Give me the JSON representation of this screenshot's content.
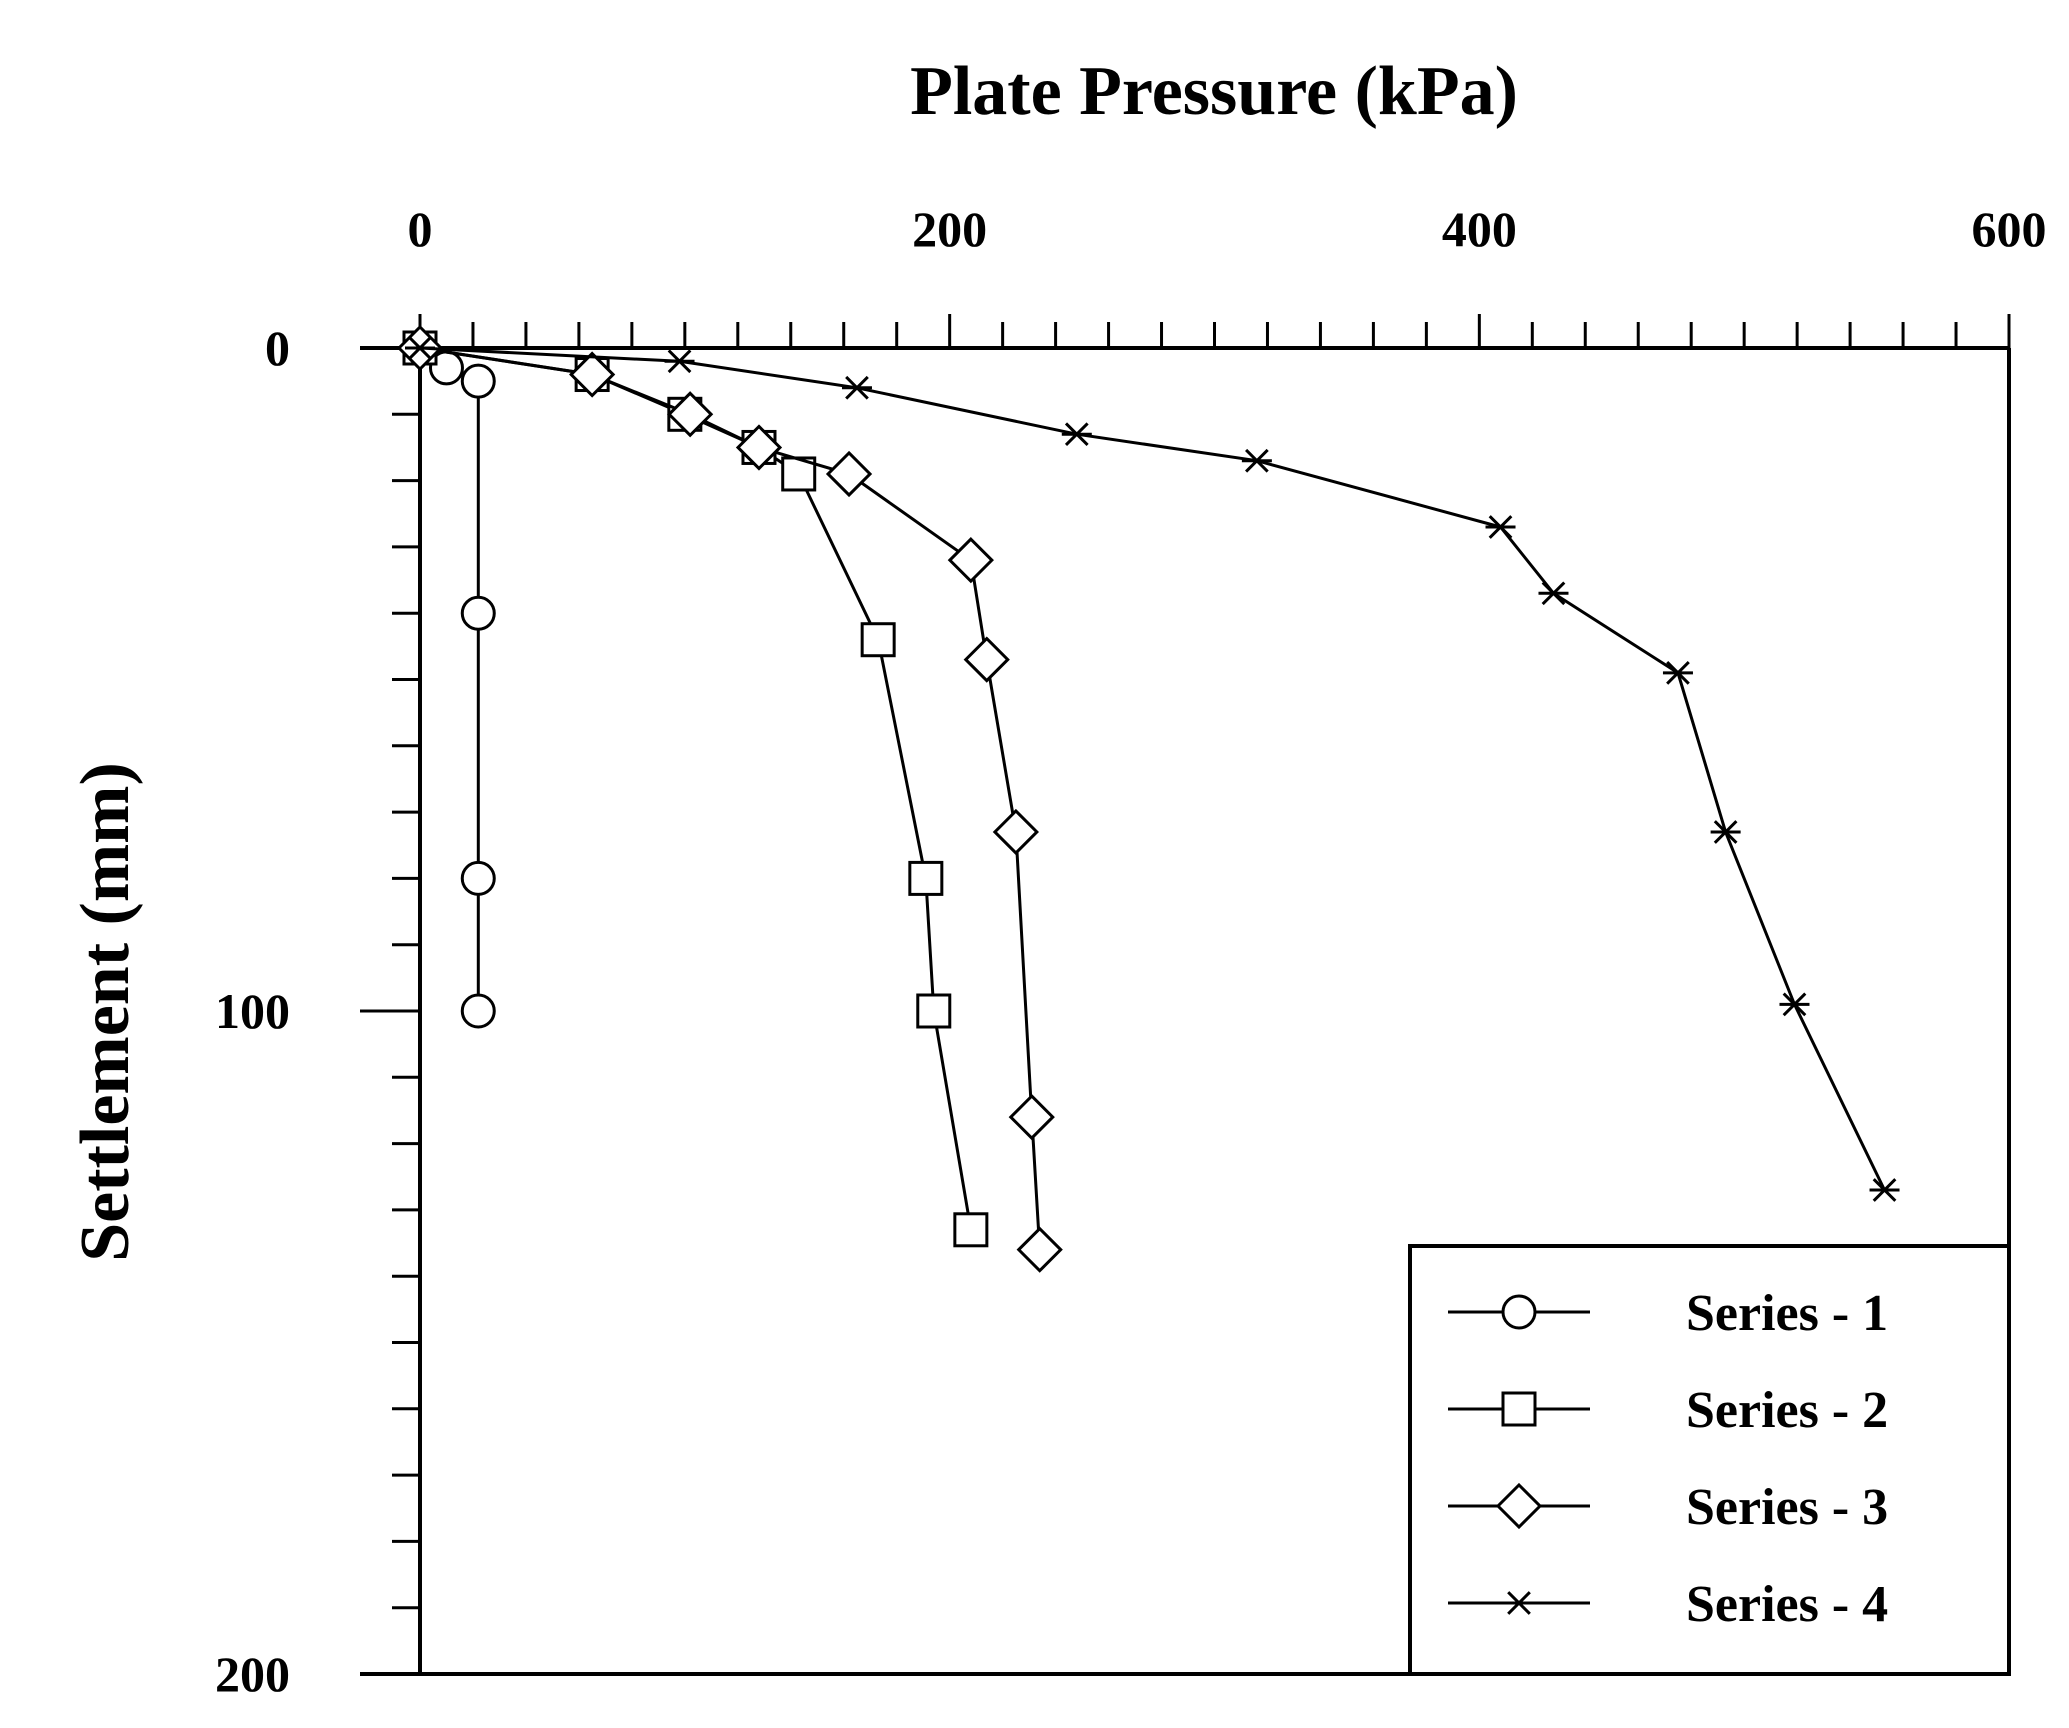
{
  "chart_data": {
    "type": "line",
    "title": "",
    "xlabel": "Plate Pressure (kPa)",
    "ylabel": "Settlement (mm)",
    "xlim": [
      0,
      600
    ],
    "ylim": [
      0,
      200
    ],
    "y_inverted": true,
    "x_axis_position": "top",
    "x_major_ticks": [
      0,
      200,
      400,
      600
    ],
    "x_minor_step": 20,
    "y_major_ticks": [
      0,
      100,
      200
    ],
    "y_minor_step": 10,
    "grid": false,
    "legend_position": "bottom-right",
    "series": [
      {
        "name": "Series - 1",
        "marker": "circle",
        "x": [
          0,
          10,
          22,
          22,
          22,
          22
        ],
        "y": [
          0,
          3,
          5,
          40,
          80,
          100
        ]
      },
      {
        "name": "Series - 2",
        "marker": "square",
        "x": [
          0,
          65,
          100,
          128,
          143,
          173,
          191,
          194,
          208
        ],
        "y": [
          0,
          4,
          10,
          15,
          19,
          44,
          80,
          100,
          133
        ]
      },
      {
        "name": "Series - 3",
        "marker": "diamond",
        "x": [
          0,
          65,
          102,
          128,
          162,
          208,
          214,
          225,
          231,
          234
        ],
        "y": [
          0,
          4,
          10,
          15,
          19,
          32,
          47,
          73,
          116,
          136
        ]
      },
      {
        "name": "Series - 4",
        "marker": "star",
        "x": [
          0,
          98,
          165,
          248,
          316,
          408,
          428,
          475,
          493,
          519,
          553
        ],
        "y": [
          0,
          2,
          6,
          13,
          17,
          27,
          37,
          49,
          73,
          99,
          127
        ]
      }
    ]
  }
}
